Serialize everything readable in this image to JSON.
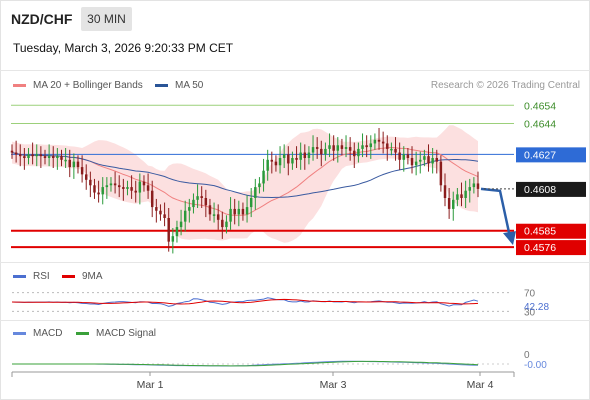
{
  "header": {
    "symbol": "NZD/CHF",
    "timeframe": "30 MIN",
    "datetime": "Tuesday, March 3, 2026 9:20:33 PM CET"
  },
  "credit": "Research © 2026 Trading Central",
  "colors": {
    "up_candle": "#2a9a3a",
    "down_candle": "#8b1d1d",
    "bollinger_fill": "#fbd5d5",
    "ma20": "#f08080",
    "ma50": "#3a5aa0",
    "resistance": "#9cd07a",
    "pivot": "#2e6bd6",
    "support": "#e00000",
    "arrow": "#2c5fa8",
    "rsi": "#4c6fd0",
    "rsi_ma": "#e00000",
    "macd": "#6688dd",
    "macd_signal": "#3aa03a"
  },
  "chart_data": [
    {
      "type": "candlestick",
      "panel": "price",
      "legend": [
        {
          "name": "MA 20 + Bollinger Bands",
          "color": "#f08080"
        },
        {
          "name": "MA 50",
          "color": "#2a5597"
        }
      ],
      "ylim": [
        0.457,
        0.4658
      ],
      "x_ticks": [
        "Mar 1",
        "Mar 3",
        "Mar 4"
      ],
      "levels": [
        {
          "value": 0.4654,
          "label": "0.4654",
          "kind": "resistance"
        },
        {
          "value": 0.4644,
          "label": "0.4644",
          "kind": "resistance"
        },
        {
          "value": 0.4627,
          "label": "0.4627",
          "kind": "pivot"
        },
        {
          "value": 0.4608,
          "label": "0.4608",
          "kind": "last_price"
        },
        {
          "value": 0.4585,
          "label": "0.4585",
          "kind": "support"
        },
        {
          "value": 0.4576,
          "label": "0.4576",
          "kind": "support"
        }
      ],
      "close": [
        0.4628,
        0.4627,
        0.4626,
        0.4625,
        0.4627,
        0.4626,
        0.4627,
        0.4626,
        0.4625,
        0.4626,
        0.4625,
        0.4626,
        0.4624,
        0.4624,
        0.462,
        0.4623,
        0.462,
        0.4616,
        0.4613,
        0.461,
        0.4606,
        0.4605,
        0.4609,
        0.461,
        0.4611,
        0.461,
        0.4609,
        0.4608,
        0.4609,
        0.4607,
        0.4606,
        0.4612,
        0.461,
        0.4607,
        0.4598,
        0.4596,
        0.4594,
        0.4592,
        0.4579,
        0.4582,
        0.4587,
        0.459,
        0.4596,
        0.4598,
        0.4602,
        0.4604,
        0.4603,
        0.4599,
        0.4594,
        0.4594,
        0.4591,
        0.4587,
        0.459,
        0.4597,
        0.4594,
        0.4597,
        0.4594,
        0.4598,
        0.4603,
        0.4609,
        0.4611,
        0.4618,
        0.4624,
        0.4623,
        0.4621,
        0.4625,
        0.4627,
        0.4622,
        0.4625,
        0.4624,
        0.4628,
        0.4625,
        0.4628,
        0.4631,
        0.463,
        0.4627,
        0.463,
        0.4632,
        0.4629,
        0.4632,
        0.463,
        0.4631,
        0.4629,
        0.4626,
        0.463,
        0.4632,
        0.4631,
        0.4633,
        0.4635,
        0.4634,
        0.4633,
        0.463,
        0.463,
        0.4628,
        0.4624,
        0.4627,
        0.4625,
        0.4621,
        0.4623,
        0.4624,
        0.4626,
        0.4622,
        0.4625,
        0.4623,
        0.461,
        0.4603,
        0.4597,
        0.4602,
        0.4605,
        0.4603,
        0.4607,
        0.4609,
        0.4611,
        0.4608
      ]
    },
    {
      "type": "line",
      "panel": "rsi",
      "legend": [
        {
          "name": "RSI",
          "color": "#4c6fd0"
        },
        {
          "name": "9MA",
          "color": "#e00000"
        }
      ],
      "levels": [
        {
          "value": 70,
          "label": "70"
        },
        {
          "value": 30,
          "label": "30"
        }
      ],
      "last_value": "42.28"
    },
    {
      "type": "line",
      "panel": "macd",
      "legend": [
        {
          "name": "MACD",
          "color": "#6688dd"
        },
        {
          "name": "MACD Signal",
          "color": "#3aa03a"
        }
      ],
      "zero_label": "0",
      "last_value": "-0.00"
    }
  ]
}
